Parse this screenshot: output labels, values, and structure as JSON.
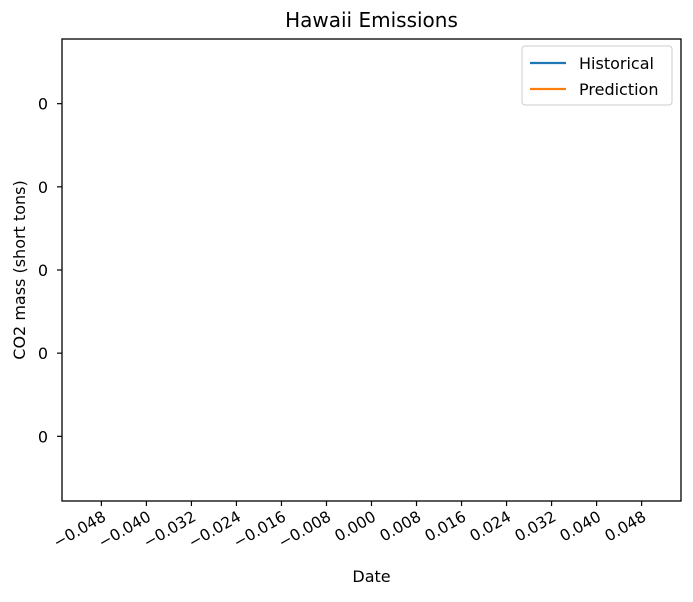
{
  "chart_data": {
    "type": "line",
    "title": "Hawaii Emissions",
    "xlabel": "Date",
    "ylabel": "CO2 mass (short tons)",
    "x_ticks": [
      "−0.048",
      "−0.040",
      "−0.032",
      "−0.024",
      "−0.016",
      "−0.008",
      "0.000",
      "0.008",
      "0.016",
      "0.024",
      "0.032",
      "0.040",
      "0.048"
    ],
    "x_tick_values": [
      -0.048,
      -0.04,
      -0.032,
      -0.024,
      -0.016,
      -0.008,
      0.0,
      0.008,
      0.016,
      0.024,
      0.032,
      0.04,
      0.048
    ],
    "xlim": [
      -0.055,
      0.055
    ],
    "y_ticks": [
      "0",
      "0",
      "0",
      "0",
      "0"
    ],
    "y_tick_fractions": [
      0.86,
      0.68,
      0.5,
      0.32,
      0.14
    ],
    "grid": false,
    "legend_position": "top-right",
    "series": [
      {
        "name": "Historical",
        "color": "#1f77b4",
        "x": [],
        "y": []
      },
      {
        "name": "Prediction",
        "color": "#ff7f0e",
        "x": [],
        "y": []
      }
    ]
  }
}
